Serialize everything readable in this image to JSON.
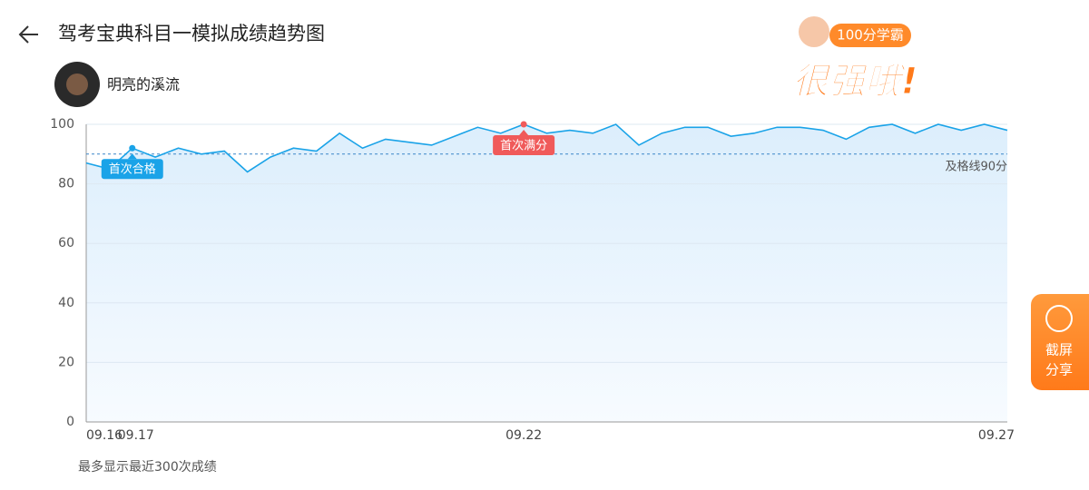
{
  "header": {
    "title": "驾考宝典科目一模拟成绩趋势图"
  },
  "user": {
    "name": "明亮的溪流"
  },
  "badge": {
    "tag": "100分学霸",
    "slogan": "很强哦!"
  },
  "share_button": {
    "line1": "截屏",
    "line2": "分享"
  },
  "footnote": "最多显示最近300次成绩",
  "chart_data": {
    "type": "line",
    "categories": [
      "09.16",
      null,
      "09.17",
      null,
      null,
      null,
      null,
      null,
      null,
      null,
      null,
      null,
      null,
      null,
      null,
      null,
      null,
      null,
      null,
      "09.22",
      null,
      null,
      null,
      null,
      null,
      null,
      null,
      null,
      null,
      null,
      null,
      null,
      null,
      null,
      null,
      null,
      null,
      null,
      null,
      null,
      "09.27"
    ],
    "series": [
      {
        "color": "#1aa3e8",
        "values": [
          87,
          85,
          92,
          89,
          92,
          90,
          91,
          84,
          89,
          92,
          91,
          97,
          92,
          95,
          94,
          93,
          96,
          99,
          97,
          100,
          97,
          98,
          97,
          100,
          93,
          97,
          99,
          99,
          96,
          97,
          99,
          99,
          98,
          95,
          99,
          100,
          97,
          100,
          98,
          100,
          98
        ]
      }
    ],
    "ylim": [
      0,
      100
    ],
    "yticks": [
      0,
      20,
      40,
      60,
      80,
      100
    ],
    "grid": true,
    "reference_line": {
      "value": 90,
      "label": "及格线90分"
    },
    "annotations": [
      {
        "point": 2,
        "label": "首次合格",
        "color": "#1aa3e8"
      },
      {
        "point": 19,
        "label": "首次满分",
        "color": "#f05a5a"
      }
    ]
  }
}
